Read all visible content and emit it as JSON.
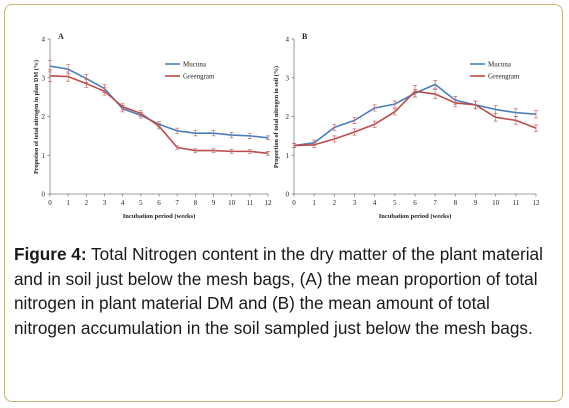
{
  "caption": {
    "label": "Figure 4:",
    "text": " Total Nitrogen content in the dry matter of the plant material and in soil just below the mesh bags, (A) the mean proportion of total nitrogen in plant material DM and (B) the mean amount of total nitrogen accumulation in the soil sampled just below the mesh bags."
  },
  "chart_data": [
    {
      "type": "line",
      "panel_label": "A",
      "xlabel": "Incubation period (weeks)",
      "ylabel": "Propotion of total nitrogen in plan DM (%)",
      "x": [
        0,
        1,
        2,
        3,
        4,
        5,
        6,
        7,
        8,
        9,
        10,
        11,
        12
      ],
      "xlim": [
        0,
        12
      ],
      "ylim": [
        0,
        4
      ],
      "yticks": [
        0,
        1,
        2,
        3,
        4
      ],
      "grid": false,
      "legend_position": "top-right",
      "series": [
        {
          "name": "Mucuna",
          "color": "#4a7ebb",
          "values": [
            3.3,
            3.22,
            2.98,
            2.72,
            2.2,
            2.03,
            1.8,
            1.63,
            1.57,
            1.57,
            1.52,
            1.5,
            1.45
          ],
          "errors": [
            0.15,
            0.12,
            0.1,
            0.1,
            0.08,
            0.07,
            0.07,
            0.07,
            0.07,
            0.07,
            0.07,
            0.07,
            0.05
          ]
        },
        {
          "name": "Greengram",
          "color": "#be4b48",
          "values": [
            3.05,
            3.03,
            2.85,
            2.65,
            2.25,
            2.08,
            1.75,
            1.2,
            1.12,
            1.12,
            1.1,
            1.1,
            1.05
          ],
          "errors": [
            0.15,
            0.12,
            0.1,
            0.1,
            0.08,
            0.07,
            0.07,
            0.05,
            0.05,
            0.05,
            0.05,
            0.05,
            0.05
          ]
        }
      ]
    },
    {
      "type": "line",
      "panel_label": "B",
      "xlabel": "Incubation period (weeks)",
      "ylabel": "Proportion of total nitrogen in soil (%)",
      "x": [
        0,
        1,
        2,
        3,
        4,
        5,
        6,
        7,
        8,
        9,
        10,
        11,
        12
      ],
      "xlim": [
        0,
        12
      ],
      "ylim": [
        0,
        4
      ],
      "yticks": [
        0,
        1,
        2,
        3,
        4
      ],
      "grid": false,
      "legend_position": "top-right",
      "series": [
        {
          "name": "Mucuna",
          "color": "#4a7ebb",
          "values": [
            1.25,
            1.32,
            1.72,
            1.9,
            2.22,
            2.32,
            2.6,
            2.83,
            2.42,
            2.3,
            2.18,
            2.1,
            2.06
          ],
          "errors": [
            0.05,
            0.07,
            0.08,
            0.08,
            0.08,
            0.08,
            0.1,
            0.1,
            0.1,
            0.1,
            0.1,
            0.1,
            0.1
          ]
        },
        {
          "name": "Greengram",
          "color": "#be4b48",
          "values": [
            1.25,
            1.27,
            1.42,
            1.6,
            1.8,
            2.12,
            2.65,
            2.58,
            2.35,
            2.3,
            1.98,
            1.9,
            1.7
          ],
          "errors": [
            0.05,
            0.07,
            0.08,
            0.08,
            0.08,
            0.08,
            0.15,
            0.12,
            0.1,
            0.1,
            0.1,
            0.1,
            0.08
          ]
        }
      ]
    }
  ]
}
